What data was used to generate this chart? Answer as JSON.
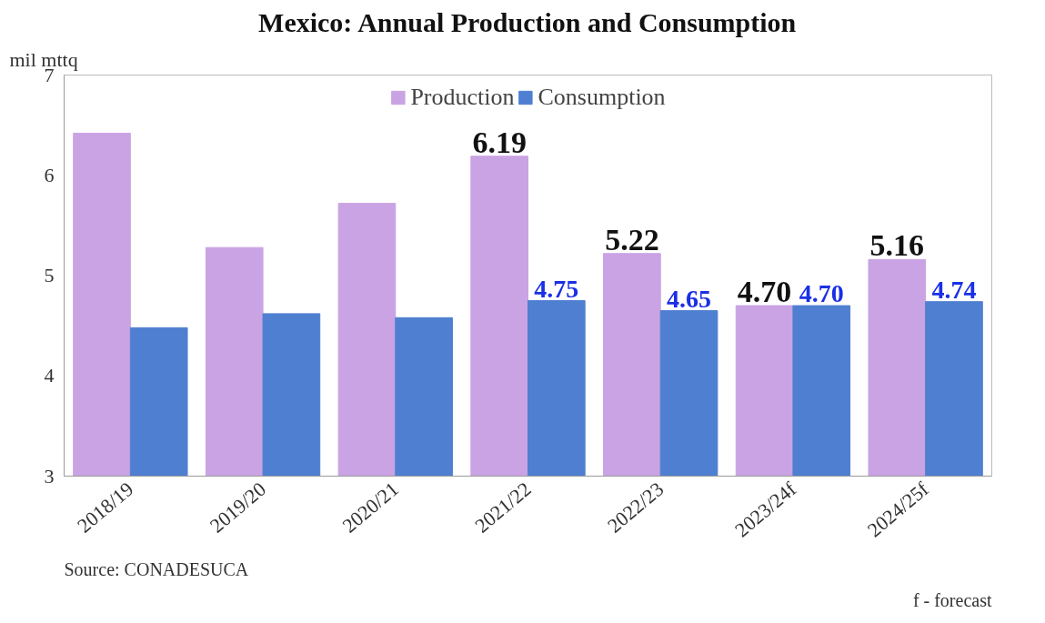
{
  "chart_data": {
    "type": "bar",
    "title": "Mexico: Annual Production and Consumption",
    "ylabel": "mil mttq",
    "categories": [
      "2018/19",
      "2019/20",
      "2020/21",
      "2021/22",
      "2022/23",
      "2023/24f",
      "2024/25f"
    ],
    "series": [
      {
        "name": "Production",
        "color": "#c9a3e3",
        "values": [
          6.42,
          5.28,
          5.72,
          6.19,
          5.22,
          4.7,
          5.16
        ],
        "value_labels": [
          null,
          null,
          null,
          "6.19",
          "5.22",
          "4.70",
          "5.16"
        ]
      },
      {
        "name": "Consumption",
        "color": "#4f7fd0",
        "values": [
          4.48,
          4.62,
          4.58,
          4.75,
          4.65,
          4.7,
          4.74
        ],
        "value_labels": [
          null,
          null,
          null,
          "4.75",
          "4.65",
          "4.70",
          "4.74"
        ]
      }
    ],
    "ylim": [
      3,
      7
    ],
    "yticks": [
      3,
      4,
      5,
      6,
      7
    ],
    "grid": false,
    "legend": "top",
    "annotations": [
      "Source: CONADESUCA",
      "f - forecast"
    ]
  }
}
